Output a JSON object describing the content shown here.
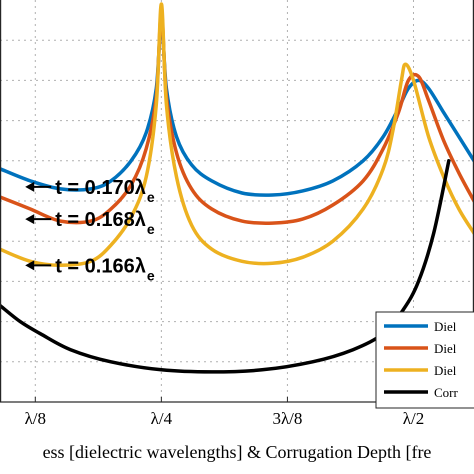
{
  "chart_data": {
    "type": "line",
    "xlabel": "ess [dielectric wavelengths] & Corrugation Depth [fre",
    "xlim": [
      0.09,
      0.56
    ],
    "ylim": [
      0,
      1
    ],
    "x_ticks": [
      {
        "value": 0.125,
        "label": "λ/8"
      },
      {
        "value": 0.25,
        "label": "λ/4"
      },
      {
        "value": 0.375,
        "label": "3λ/8"
      },
      {
        "value": 0.5,
        "label": "λ/2"
      }
    ],
    "grid": true,
    "legend_position": "bottom-right",
    "colors": {
      "blue": "#0072BD",
      "orange": "#D95319",
      "yellow": "#EDB120",
      "black": "#000000"
    },
    "annotations": [
      {
        "text": "t = 0.170λ",
        "sub": "e",
        "series": 0
      },
      {
        "text": "t = 0.168λ",
        "sub": "e",
        "series": 1
      },
      {
        "text": "t = 0.166λ",
        "sub": "e",
        "series": 2
      }
    ],
    "series": [
      {
        "name": "Diel",
        "color": "#0072BD",
        "x": [
          0.09,
          0.12,
          0.15,
          0.18,
          0.2,
          0.22,
          0.235,
          0.245,
          0.25,
          0.255,
          0.265,
          0.28,
          0.3,
          0.33,
          0.36,
          0.39,
          0.42,
          0.45,
          0.47,
          0.485,
          0.495,
          0.505,
          0.515,
          0.53,
          0.545,
          0.56
        ],
        "y": [
          0.58,
          0.55,
          0.53,
          0.53,
          0.55,
          0.6,
          0.67,
          0.78,
          0.95,
          0.78,
          0.66,
          0.59,
          0.55,
          0.52,
          0.515,
          0.525,
          0.55,
          0.6,
          0.66,
          0.73,
          0.78,
          0.8,
          0.78,
          0.72,
          0.66,
          0.6
        ]
      },
      {
        "name": "Diel",
        "color": "#D95319",
        "x": [
          0.09,
          0.12,
          0.15,
          0.18,
          0.2,
          0.22,
          0.235,
          0.245,
          0.25,
          0.255,
          0.265,
          0.28,
          0.3,
          0.33,
          0.36,
          0.39,
          0.42,
          0.45,
          0.47,
          0.485,
          0.495,
          0.505,
          0.515,
          0.53,
          0.545,
          0.56
        ],
        "y": [
          0.51,
          0.48,
          0.45,
          0.45,
          0.48,
          0.54,
          0.63,
          0.76,
          0.97,
          0.76,
          0.62,
          0.53,
          0.48,
          0.45,
          0.445,
          0.455,
          0.49,
          0.55,
          0.63,
          0.72,
          0.8,
          0.81,
          0.75,
          0.65,
          0.57,
          0.5
        ]
      },
      {
        "name": "Diel",
        "color": "#EDB120",
        "x": [
          0.09,
          0.12,
          0.15,
          0.18,
          0.2,
          0.22,
          0.235,
          0.245,
          0.25,
          0.255,
          0.265,
          0.28,
          0.3,
          0.33,
          0.36,
          0.39,
          0.42,
          0.45,
          0.47,
          0.48,
          0.488,
          0.492,
          0.5,
          0.515,
          0.53,
          0.545,
          0.56
        ],
        "y": [
          0.38,
          0.35,
          0.34,
          0.35,
          0.39,
          0.46,
          0.56,
          0.74,
          0.99,
          0.74,
          0.56,
          0.44,
          0.38,
          0.35,
          0.345,
          0.36,
          0.4,
          0.48,
          0.58,
          0.68,
          0.8,
          0.84,
          0.8,
          0.66,
          0.56,
          0.48,
          0.42
        ]
      },
      {
        "name": "Corr",
        "color": "#000000",
        "x": [
          0.09,
          0.11,
          0.13,
          0.16,
          0.2,
          0.25,
          0.3,
          0.35,
          0.4,
          0.44,
          0.47,
          0.49,
          0.505,
          0.52,
          0.535
        ],
        "y": [
          0.24,
          0.2,
          0.17,
          0.13,
          0.1,
          0.08,
          0.075,
          0.08,
          0.1,
          0.13,
          0.17,
          0.23,
          0.3,
          0.42,
          0.6
        ]
      }
    ]
  }
}
